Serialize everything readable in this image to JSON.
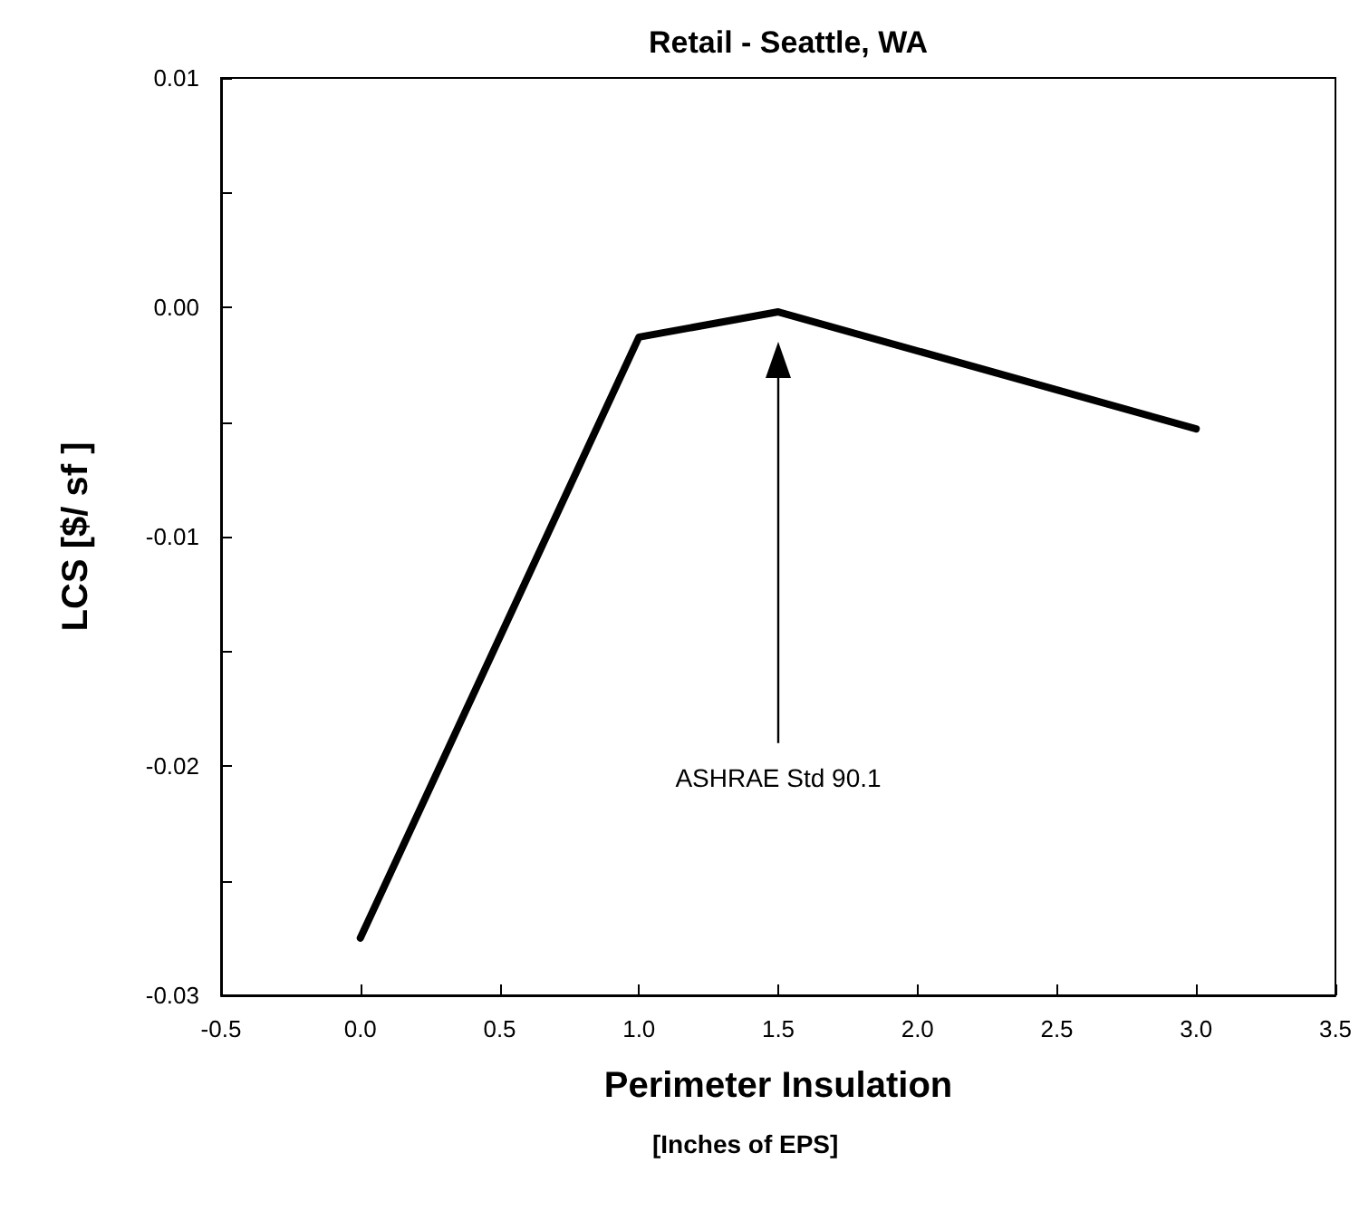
{
  "chart_data": {
    "type": "line",
    "title": "Retail - Seattle, WA",
    "xlabel": "Perimeter Insulation",
    "ylabel": "LCS [$/ sf ]",
    "x": [
      0.0,
      1.0,
      1.5,
      3.0
    ],
    "series": [
      {
        "color": "#000000",
        "values": [
          -0.0275,
          -0.0013,
          -0.0002,
          -0.0053
        ]
      }
    ],
    "xlim": [
      -0.5,
      3.5
    ],
    "xticks": [
      {
        "value": -0.5,
        "label": "-0.5"
      },
      {
        "value": 0,
        "label": "0.0"
      },
      {
        "value": 0.5,
        "label": "0.5"
      },
      {
        "value": 1,
        "label": "1.0"
      },
      {
        "value": 1.5,
        "label": "1.5"
      },
      {
        "value": 2,
        "label": "2.0"
      },
      {
        "value": 2.5,
        "label": "2.5"
      },
      {
        "value": 3,
        "label": "3.0"
      },
      {
        "value": 3.5,
        "label": "3.5"
      }
    ],
    "ylim": [
      -0.03,
      0.01
    ],
    "yticks": [
      {
        "value": -0.03,
        "label": "-0.03"
      },
      {
        "value": -0.025,
        "label": null
      },
      {
        "value": -0.02,
        "label": "-0.02"
      },
      {
        "value": -0.015,
        "label": null
      },
      {
        "value": -0.01,
        "label": "-0.01"
      },
      {
        "value": -0.005,
        "label": null
      },
      {
        "value": 0,
        "label": "0.00"
      },
      {
        "value": 0.005,
        "label": null
      },
      {
        "value": 0.01,
        "label": "0.01"
      }
    ],
    "annotations": [
      "ASHRAE Std 90.1",
      "[Inches of EPS]"
    ],
    "grid": false,
    "marker": "none",
    "line_style": "solid"
  }
}
